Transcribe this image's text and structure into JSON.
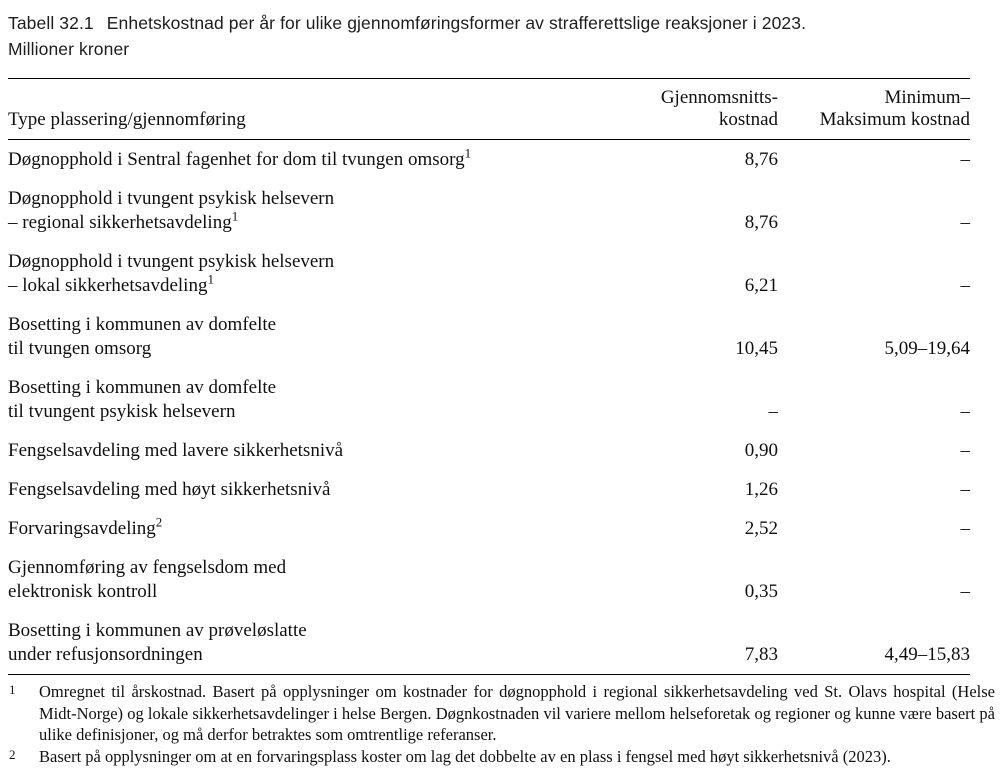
{
  "title": {
    "label": "Tabell 32.1",
    "text_line1": "Enhetskostnad per år for ulike gjennomføringsformer av strafferettslige reaksjoner i 2023.",
    "text_line2": "Millioner kroner"
  },
  "header": {
    "label": "Type plassering/gjennomføring",
    "avg_line1": "Gjennomsnitts-",
    "avg_line2": "kostnad",
    "minmax_line1": "Minimum–",
    "minmax_line2": "Maksimum kostnad"
  },
  "table": {
    "rows": [
      {
        "lines": [
          "Døgnopphold i Sentral fagenhet for dom til tvungen omsorg"
        ],
        "sup": "1",
        "avg": "8,76",
        "minmax": "–"
      },
      {
        "lines": [
          "Døgnopphold i tvungent psykisk helsevern",
          "– regional sikkerhetsavdeling"
        ],
        "sup": "1",
        "avg": "8,76",
        "minmax": "–"
      },
      {
        "lines": [
          "Døgnopphold i tvungent psykisk helsevern",
          "– lokal sikkerhetsavdeling"
        ],
        "sup": "1",
        "avg": "6,21",
        "minmax": "–"
      },
      {
        "lines": [
          "Bosetting i kommunen av domfelte",
          "til tvungen omsorg"
        ],
        "avg": "10,45",
        "minmax": "5,09–19,64"
      },
      {
        "lines": [
          "Bosetting i kommunen av domfelte",
          "til tvungent psykisk helsevern"
        ],
        "avg": "–",
        "minmax": "–"
      },
      {
        "lines": [
          "Fengselsavdeling med lavere sikkerhetsnivå"
        ],
        "avg": "0,90",
        "minmax": "–"
      },
      {
        "lines": [
          "Fengselsavdeling med høyt sikkerhetsnivå"
        ],
        "avg": "1,26",
        "minmax": "–"
      },
      {
        "lines": [
          "Forvaringsavdeling"
        ],
        "sup": "2",
        "avg": "2,52",
        "minmax": "–"
      },
      {
        "lines": [
          "Gjennomføring av fengselsdom med",
          "elektronisk kontroll"
        ],
        "avg": "0,35",
        "minmax": "–"
      },
      {
        "lines": [
          "Bosetting i kommunen av prøveløslatte",
          "under refusjonsordningen"
        ],
        "avg": "7,83",
        "minmax": "4,49–15,83"
      }
    ]
  },
  "footnotes": [
    {
      "marker": "1",
      "text": "Omregnet til årskostnad. Basert på opplysninger om kostnader for døgnopphold i regional sikkerhetsavdeling ved St. Olavs hospital (Helse Midt-Norge) og lokale sikkerhetsavdelinger i helse Bergen. Døgnkostnaden vil variere mellom helseforetak og regioner og kunne være basert på ulike definisjoner, og må derfor betraktes som omtrentlige referanser."
    },
    {
      "marker": "2",
      "text": "Basert på opplysninger om at en forvaringsplass koster om lag det dobbelte av en plass i fengsel med høyt sikkerhetsnivå (2023)."
    }
  ]
}
